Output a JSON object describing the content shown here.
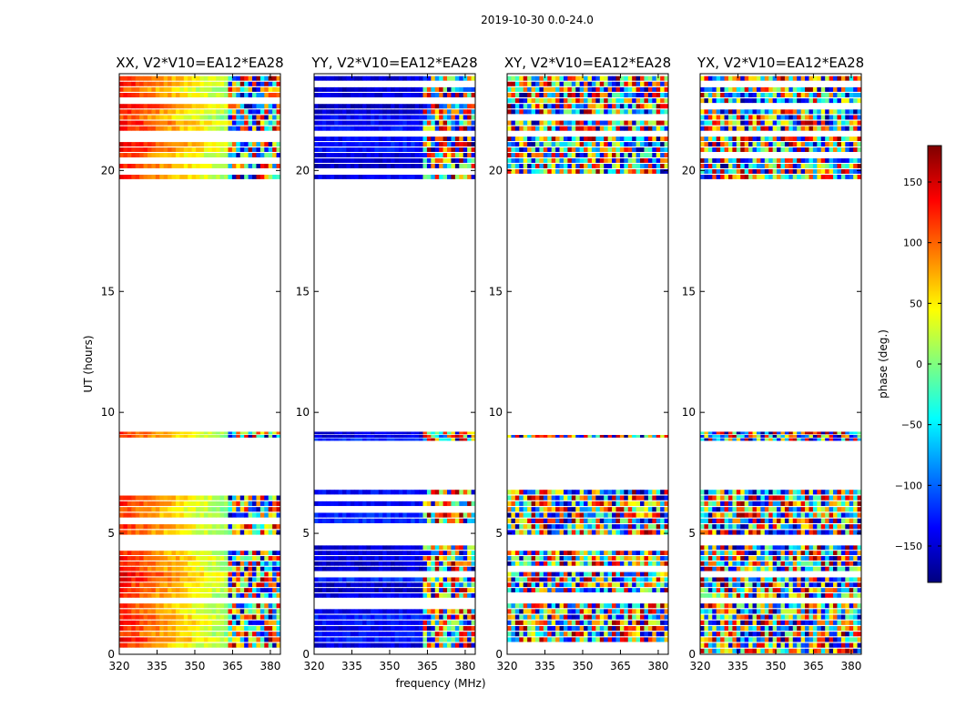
{
  "figure": {
    "suptitle": "2019-10-30 0.0-24.0",
    "shared_xlabel": "frequency (MHz)",
    "shared_ylabel": "UT (hours)"
  },
  "colorbar": {
    "label": "phase (deg.)",
    "range": [
      -180,
      180
    ],
    "ticks": [
      -150,
      -100,
      -50,
      0,
      50,
      100,
      150
    ],
    "tick_labels": [
      "−150",
      "−100",
      "−50",
      "0",
      "50",
      "100",
      "150"
    ],
    "colormap": "jet",
    "colormap_stops": [
      "#00007f",
      "#0000ff",
      "#007fff",
      "#00ffff",
      "#7fff7f",
      "#ffff00",
      "#ff7f00",
      "#ff0000",
      "#7f0000"
    ]
  },
  "chart_data": {
    "type": "heatmap",
    "xlim": [
      320,
      384
    ],
    "ylim": [
      0,
      24
    ],
    "xticks": [
      320,
      335,
      350,
      365,
      380
    ],
    "yticks": [
      0,
      5,
      10,
      15,
      20
    ],
    "data_blocks_ut_hours": [
      [
        0.0,
        2.1
      ],
      [
        2.3,
        4.5
      ],
      [
        4.9,
        6.8
      ],
      [
        8.8,
        9.2
      ],
      [
        19.6,
        21.4
      ],
      [
        21.6,
        23.9
      ]
    ],
    "panels": [
      {
        "title": "XX, V2*V10=EA12*EA28",
        "pattern": "smooth-gradient",
        "phase_start_deg": 130,
        "phase_end_deg": 10,
        "transition_mhz": 363
      },
      {
        "title": "YY, V2*V10=EA12*EA28",
        "pattern": "mostly-constant",
        "phase_start_deg": -140,
        "phase_end_deg": -135,
        "transition_mhz": 363
      },
      {
        "title": "XY, V2*V10=EA12*EA28",
        "pattern": "noise",
        "phase_start_deg": 0,
        "phase_end_deg": 0,
        "transition_mhz": 320
      },
      {
        "title": "YX, V2*V10=EA12*EA28",
        "pattern": "noise",
        "phase_start_deg": 0,
        "phase_end_deg": 0,
        "transition_mhz": 320
      }
    ]
  }
}
